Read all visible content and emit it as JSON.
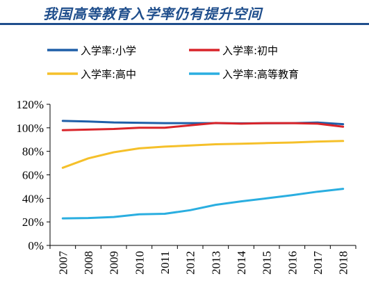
{
  "title": "我国高等教育入学率仍有提升空间",
  "chart_data": {
    "type": "line",
    "title": "我国高等教育入学率仍有提升空间",
    "xlabel": "",
    "ylabel": "",
    "x": [
      "2007",
      "2008",
      "2009",
      "2010",
      "2011",
      "2012",
      "2013",
      "2014",
      "2015",
      "2016",
      "2017",
      "2018"
    ],
    "ylim": [
      0,
      120
    ],
    "yticks": [
      0,
      20,
      40,
      60,
      80,
      100,
      120
    ],
    "ytick_labels": [
      "0%",
      "20%",
      "40%",
      "60%",
      "80%",
      "100%",
      "120%"
    ],
    "grid": false,
    "legend_position": "top",
    "series": [
      {
        "name": "入学率:小学",
        "color": "#1f5fa8",
        "values": [
          105.9,
          105.4,
          104.6,
          104.3,
          104.0,
          104.0,
          104.0,
          103.8,
          103.9,
          104.0,
          104.5,
          103.1
        ]
      },
      {
        "name": "入学率:初中",
        "color": "#d9242a",
        "values": [
          98.0,
          98.5,
          99.0,
          100.1,
          100.1,
          102.1,
          104.1,
          103.5,
          104.0,
          104.0,
          103.5,
          100.9
        ]
      },
      {
        "name": "入学率:高中",
        "color": "#f5c02a",
        "values": [
          66.0,
          74.0,
          79.2,
          82.5,
          84.0,
          85.0,
          86.0,
          86.5,
          87.0,
          87.5,
          88.3,
          88.8
        ]
      },
      {
        "name": "入学率:高等教育",
        "color": "#2aaee0",
        "values": [
          23.0,
          23.3,
          24.2,
          26.5,
          26.9,
          30.0,
          34.5,
          37.5,
          40.0,
          42.7,
          45.7,
          48.1
        ]
      }
    ]
  }
}
